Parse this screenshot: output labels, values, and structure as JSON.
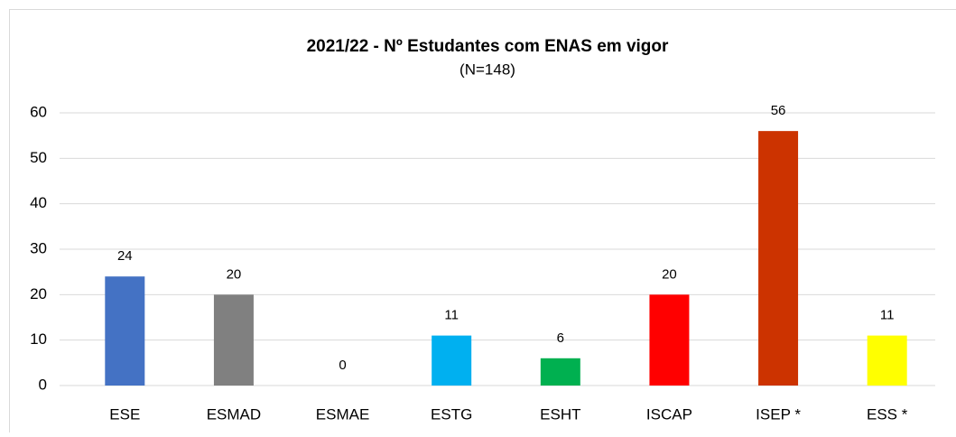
{
  "chart_data": {
    "type": "bar",
    "title": "2021/22 - Nº Estudantes com ENAS em vigor",
    "subtitle": "(N=148)",
    "categories": [
      "ESE",
      "ESMAD",
      "ESMAE",
      "ESTG",
      "ESHT",
      "ISCAP",
      "ISEP *",
      "ESS *"
    ],
    "values": [
      24,
      20,
      0,
      11,
      6,
      20,
      56,
      11
    ],
    "colors": [
      "#4472c4",
      "#808080",
      null,
      "#00b0f0",
      "#00b050",
      "#ff0000",
      "#cc3300",
      "#ffff00"
    ],
    "ylim": [
      0,
      60
    ],
    "yticks": [
      0,
      10,
      20,
      30,
      40,
      50,
      60
    ],
    "grid": true
  }
}
